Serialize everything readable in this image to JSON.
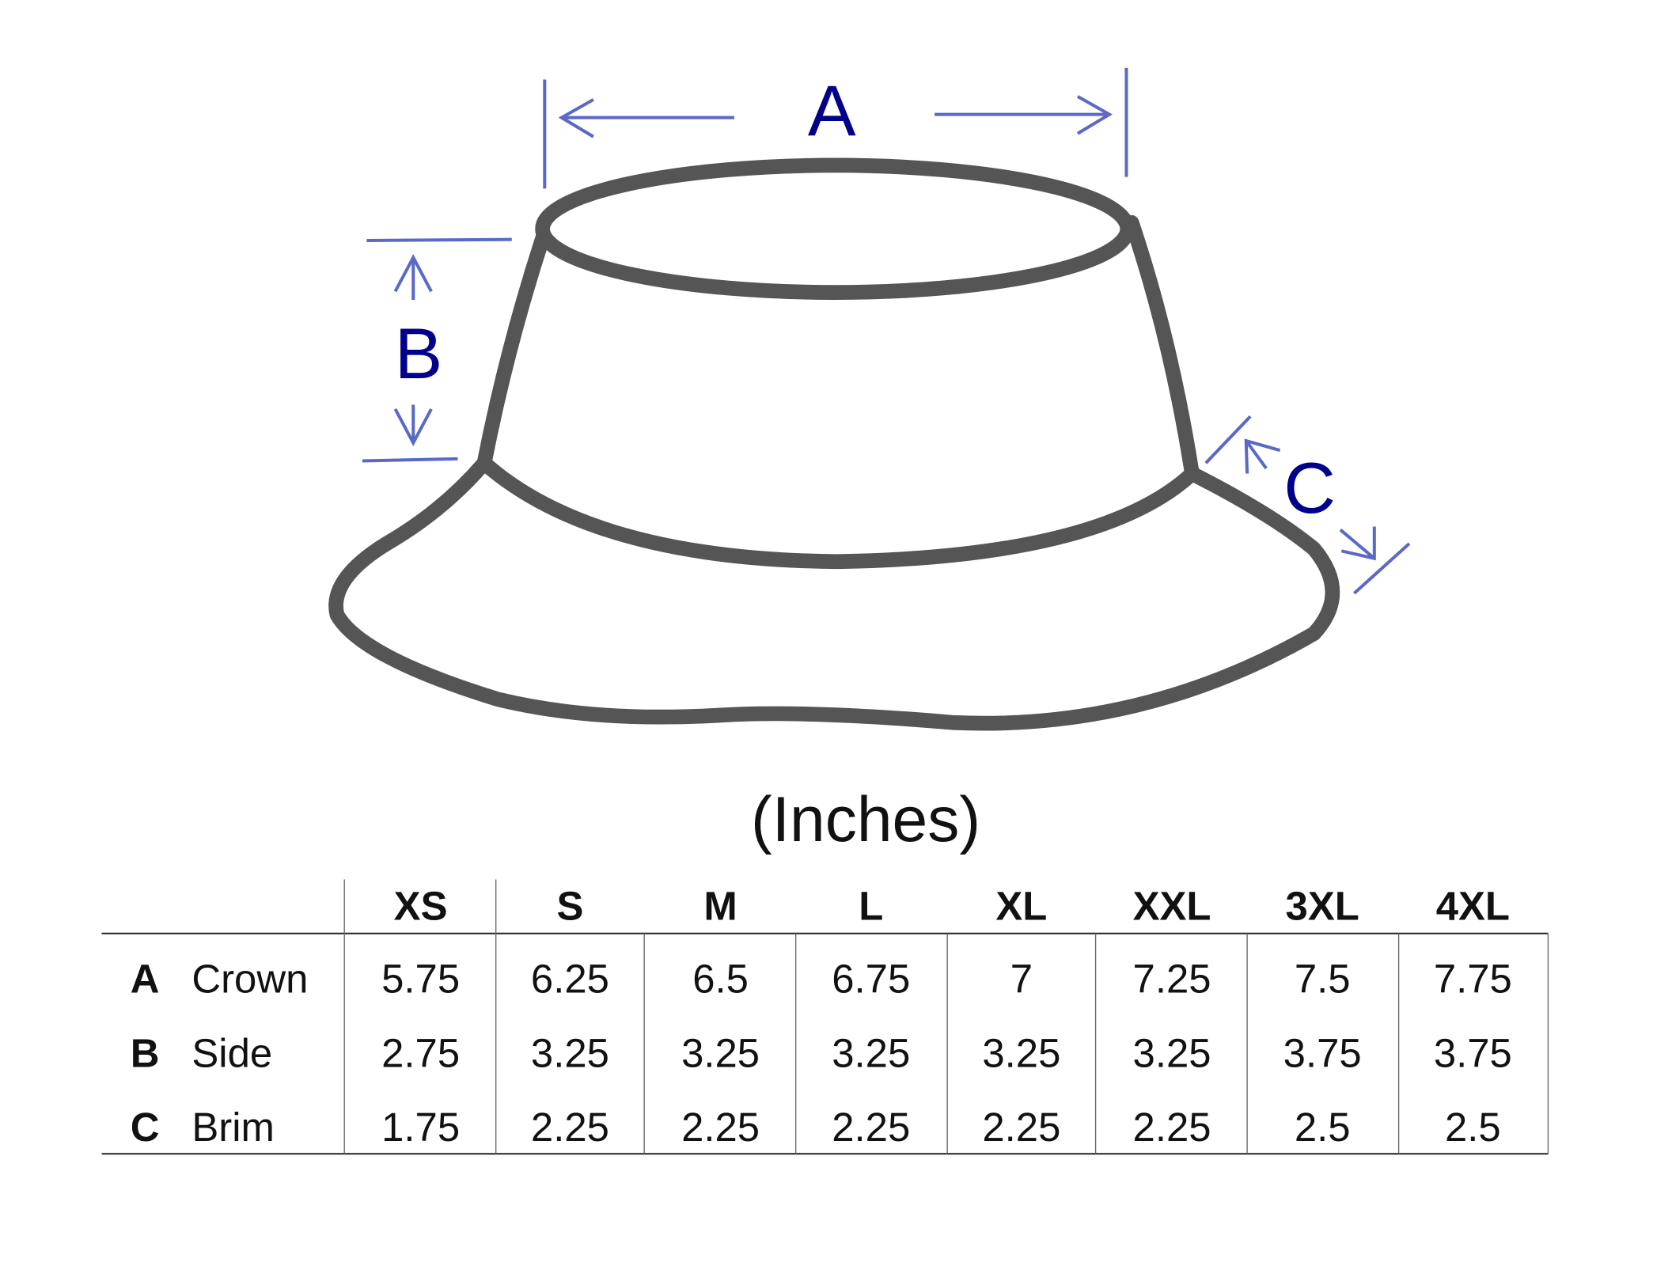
{
  "colors": {
    "dimension_line": "#5a69c6",
    "dimension_label": "#00008b",
    "hat_outline": "#555555",
    "text": "#111111",
    "grid": "#333333"
  },
  "diagram": {
    "labels": {
      "a": "A",
      "b": "B",
      "c": "C"
    }
  },
  "units": "(Inches)",
  "table": {
    "columns": [
      "XS",
      "S",
      "M",
      "L",
      "XL",
      "XXL",
      "3XL",
      "4XL"
    ],
    "rows": [
      {
        "key": "A",
        "name": "Crown",
        "values": [
          "5.75",
          "6.25",
          "6.5",
          "6.75",
          "7",
          "7.25",
          "7.5",
          "7.75"
        ]
      },
      {
        "key": "B",
        "name": "Side",
        "values": [
          "2.75",
          "3.25",
          "3.25",
          "3.25",
          "3.25",
          "3.25",
          "3.75",
          "3.75"
        ]
      },
      {
        "key": "C",
        "name": "Brim",
        "values": [
          "1.75",
          "2.25",
          "2.25",
          "2.25",
          "2.25",
          "2.25",
          "2.5",
          "2.5"
        ]
      }
    ]
  }
}
